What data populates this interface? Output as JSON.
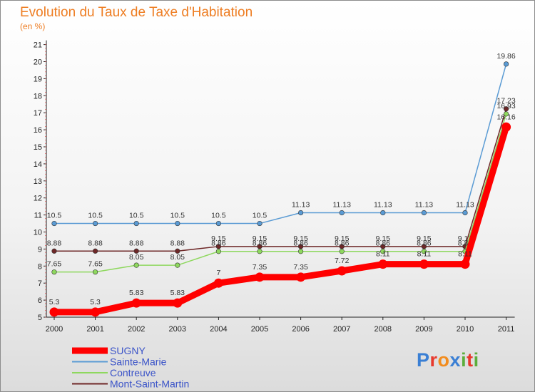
{
  "title": "Evolution du Taux de Taxe d'Habitation",
  "unit_label": "(en %)",
  "logo": {
    "text": "Proxiti",
    "colors": [
      "#3a7fd4",
      "#e8392d",
      "#f28c1e",
      "#3a7fd4",
      "#5cae3c",
      "#e8392d",
      "#5cae3c"
    ]
  },
  "chart_data": {
    "type": "line",
    "title": "Evolution du Taux de Taxe d'Habitation",
    "ylabel": "(en %)",
    "xlabel": "",
    "ylim": [
      5,
      21
    ],
    "yticks": [
      5,
      6,
      7,
      8,
      9,
      10,
      11,
      12,
      13,
      14,
      15,
      16,
      17,
      18,
      19,
      20,
      21
    ],
    "categories": [
      "2000",
      "2001",
      "2002",
      "2003",
      "2004",
      "2005",
      "2006",
      "2007",
      "2008",
      "2009",
      "2010",
      "2011"
    ],
    "legend_position": "bottom-left",
    "series": [
      {
        "name": "Mont-Saint-Martin",
        "color": "#6e2727",
        "values": [
          8.88,
          8.88,
          8.88,
          8.88,
          9.15,
          9.15,
          9.15,
          9.15,
          9.15,
          9.15,
          9.15,
          17.23
        ],
        "labels": [
          "8.88",
          "8.88",
          "8.88",
          "8.88",
          "9.15",
          "9.15",
          "9.15",
          "9.15",
          "9.15",
          "9.15",
          "9.15",
          "17.23"
        ]
      },
      {
        "name": "Contreuve",
        "color": "#8ed85e",
        "values": [
          7.65,
          7.65,
          8.05,
          8.05,
          8.86,
          8.86,
          8.86,
          8.86,
          8.86,
          8.86,
          8.86,
          16.93
        ],
        "labels": [
          "7.65",
          "7.65",
          "8.05",
          "8.05",
          "8.86",
          "8.86",
          "8.86",
          "8.86",
          "8.86",
          "8.86",
          "8.86",
          "16.93"
        ]
      },
      {
        "name": "Sainte-Marie",
        "color": "#5a9bd4",
        "values": [
          10.5,
          10.5,
          10.5,
          10.5,
          10.5,
          10.5,
          11.13,
          11.13,
          11.13,
          11.13,
          11.13,
          19.86
        ],
        "labels": [
          "10.5",
          "10.5",
          "10.5",
          "10.5",
          "10.5",
          "10.5",
          "11.13",
          "11.13",
          "11.13",
          "11.13",
          "11.13",
          "19.86"
        ]
      },
      {
        "name": "SUGNY",
        "color": "#ff0000",
        "values": [
          5.3,
          5.3,
          5.83,
          5.83,
          7,
          7.35,
          7.35,
          7.72,
          8.11,
          8.11,
          8.11,
          16.16
        ],
        "labels": [
          "5.3",
          "5.3",
          "5.83",
          "5.83",
          "7",
          "7.35",
          "7.35",
          "7.72",
          "8.11",
          "8.11",
          "8.11",
          "16.16"
        ]
      }
    ],
    "legend": [
      {
        "name": "SUGNY",
        "color": "#ff0000",
        "thick": true
      },
      {
        "name": "Sainte-Marie",
        "color": "#5a9bd4",
        "thick": false
      },
      {
        "name": "Contreuve",
        "color": "#8ed85e",
        "thick": false
      },
      {
        "name": "Mont-Saint-Martin",
        "color": "#6e2727",
        "thick": false
      }
    ]
  }
}
